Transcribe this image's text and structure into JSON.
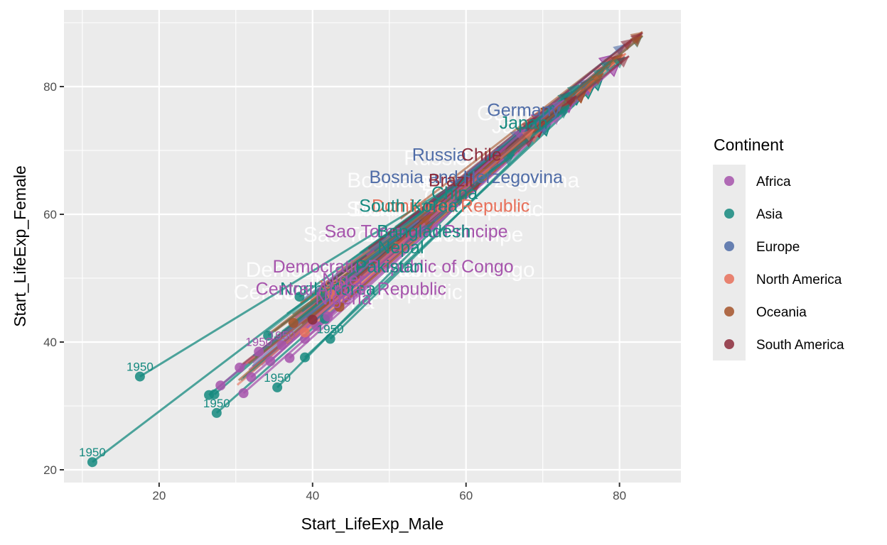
{
  "chart_data": {
    "type": "scatter",
    "subtype": "arrow-trajectory",
    "title": "",
    "xlabel": "Start_LifeExp_Male",
    "ylabel": "Start_LifeExp_Female",
    "xlim": [
      7.6,
      88
    ],
    "ylim": [
      18,
      92
    ],
    "x_ticks": [
      20,
      40,
      60,
      80
    ],
    "y_ticks": [
      20,
      40,
      60,
      80
    ],
    "grid": true,
    "legend": {
      "title": "Continent",
      "placement": "right",
      "entries": [
        {
          "name": "Africa",
          "color": "#a654ac"
        },
        {
          "name": "Asia",
          "color": "#15897f"
        },
        {
          "name": "Europe",
          "color": "#4f6ca7"
        },
        {
          "name": "North America",
          "color": "#e8705a"
        },
        {
          "name": "Oceania",
          "color": "#a5542a"
        },
        {
          "name": "South America",
          "color": "#8c2b3b"
        }
      ]
    },
    "start_points": [
      {
        "continent": "Asia",
        "x": 11.3,
        "y": 21.2,
        "label": "1950"
      },
      {
        "continent": "Asia",
        "x": 17.5,
        "y": 34.6,
        "label": "1950"
      },
      {
        "continent": "Asia",
        "x": 26.5,
        "y": 31.7,
        "label": ""
      },
      {
        "continent": "Asia",
        "x": 27.2,
        "y": 31.8,
        "label": ""
      },
      {
        "continent": "Asia",
        "x": 27.5,
        "y": 28.9,
        "label": "1950"
      },
      {
        "continent": "Asia",
        "x": 35.4,
        "y": 32.9,
        "label": "1950"
      },
      {
        "continent": "Asia",
        "x": 34.2,
        "y": 41.0,
        "label": ""
      },
      {
        "continent": "Asia",
        "x": 38.3,
        "y": 47.1,
        "label": ""
      },
      {
        "continent": "Asia",
        "x": 39.0,
        "y": 37.6,
        "label": ""
      },
      {
        "continent": "Asia",
        "x": 41.6,
        "y": 43.6,
        "label": ""
      },
      {
        "continent": "Asia",
        "x": 42.3,
        "y": 40.5,
        "label": "1950"
      },
      {
        "continent": "Africa",
        "x": 28.0,
        "y": 33.2,
        "label": ""
      },
      {
        "continent": "Africa",
        "x": 30.5,
        "y": 36.0,
        "label": ""
      },
      {
        "continent": "Africa",
        "x": 31.0,
        "y": 32.0,
        "label": ""
      },
      {
        "continent": "Africa",
        "x": 32.0,
        "y": 34.5,
        "label": ""
      },
      {
        "continent": "Africa",
        "x": 33.0,
        "y": 38.5,
        "label": "1950"
      },
      {
        "continent": "Africa",
        "x": 34.5,
        "y": 37.0,
        "label": ""
      },
      {
        "continent": "Africa",
        "x": 36.0,
        "y": 39.5,
        "label": "1950"
      },
      {
        "continent": "Africa",
        "x": 37.0,
        "y": 37.5,
        "label": ""
      },
      {
        "continent": "Africa",
        "x": 39.0,
        "y": 40.5,
        "label": ""
      },
      {
        "continent": "Africa",
        "x": 40.5,
        "y": 42.5,
        "label": ""
      },
      {
        "continent": "Africa",
        "x": 42.0,
        "y": 44.0,
        "label": ""
      },
      {
        "continent": "Oceania",
        "x": 37.5,
        "y": 43.0,
        "label": ""
      },
      {
        "continent": "Oceania",
        "x": 43.5,
        "y": 45.5,
        "label": ""
      },
      {
        "continent": "North America",
        "x": 39.0,
        "y": 41.5,
        "label": ""
      },
      {
        "continent": "North America",
        "x": 42.5,
        "y": 47.5,
        "label": "1950"
      },
      {
        "continent": "South America",
        "x": 40.0,
        "y": 43.5,
        "label": ""
      }
    ],
    "arrow_end_range": {
      "x": [
        62,
        84
      ],
      "y": [
        66,
        88
      ]
    },
    "country_labels": [
      {
        "name": "Germany",
        "continent": "Europe",
        "x": 67.5,
        "y": 76.5
      },
      {
        "name": "Japan",
        "continent": "Asia",
        "x": 67.5,
        "y": 74.5
      },
      {
        "name": "Russia",
        "continent": "Europe",
        "x": 56.5,
        "y": 69.5
      },
      {
        "name": "Chile",
        "continent": "South America",
        "x": 62.0,
        "y": 69.5
      },
      {
        "name": "Bosnia and Herzegovina",
        "continent": "Europe",
        "x": 60.0,
        "y": 66.0
      },
      {
        "name": "Brazil",
        "continent": "South America",
        "x": 58.0,
        "y": 65.5
      },
      {
        "name": "China",
        "continent": "Asia",
        "x": 58.5,
        "y": 63.5
      },
      {
        "name": "Dominican Republic",
        "continent": "North America",
        "x": 58.0,
        "y": 61.5
      },
      {
        "name": "South Korea",
        "continent": "Asia",
        "x": 52.5,
        "y": 61.5
      },
      {
        "name": "Sao Tome and Principe",
        "continent": "Africa",
        "x": 53.5,
        "y": 57.5
      },
      {
        "name": "Bangladesh",
        "continent": "Asia",
        "x": 54.5,
        "y": 57.5
      },
      {
        "name": "Nepal",
        "continent": "Asia",
        "x": 51.5,
        "y": 55.0
      },
      {
        "name": "Democratic Republic of Congo",
        "continent": "Africa",
        "x": 50.5,
        "y": 52.0
      },
      {
        "name": "Pakistan",
        "continent": "Asia",
        "x": 50.0,
        "y": 52.0
      },
      {
        "name": "Niger",
        "continent": "Africa",
        "x": 44.0,
        "y": 50.0
      },
      {
        "name": "North Korea",
        "continent": "Asia",
        "x": 42.0,
        "y": 48.5
      },
      {
        "name": "Central African Republic",
        "continent": "Africa",
        "x": 45.0,
        "y": 48.5
      },
      {
        "name": "Nigeria",
        "continent": "Africa",
        "x": 44.0,
        "y": 47.0
      }
    ]
  }
}
